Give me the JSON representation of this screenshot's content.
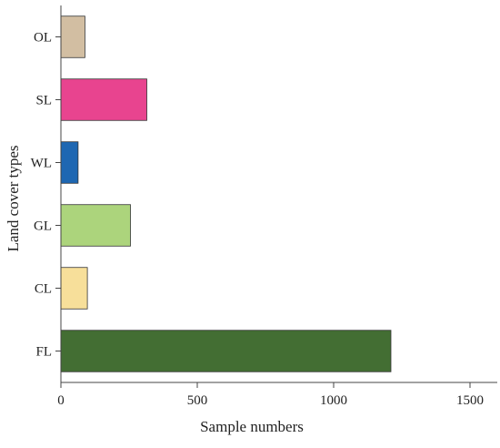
{
  "chart_data": {
    "type": "bar",
    "orientation": "horizontal",
    "categories": [
      "FL",
      "CL",
      "GL",
      "WL",
      "SL",
      "OL"
    ],
    "values": [
      1210,
      97,
      255,
      63,
      315,
      88
    ],
    "colors": [
      "#436e33",
      "#f7df9a",
      "#acd47c",
      "#1e67b2",
      "#e8448f",
      "#d2bea2"
    ],
    "xlabel": "Sample numbers",
    "ylabel": "Land cover types",
    "xlim": [
      0,
      1600
    ],
    "xticks": [
      0,
      500,
      1000,
      1500
    ],
    "grid": false,
    "legend": "none"
  }
}
